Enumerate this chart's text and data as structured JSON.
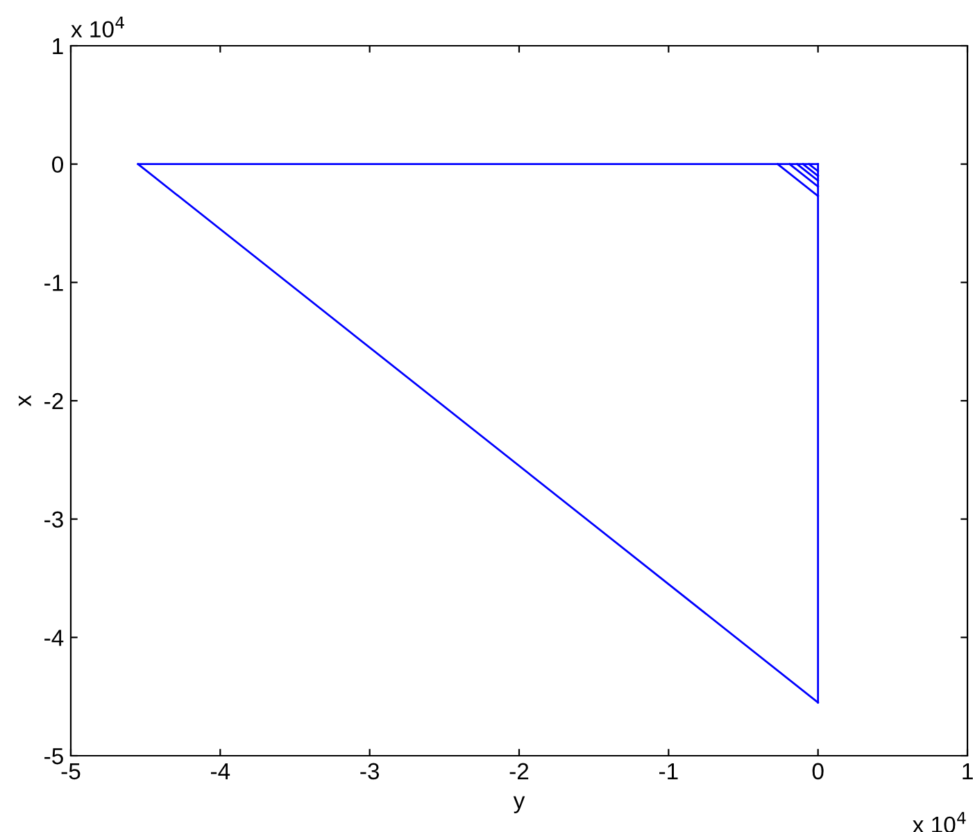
{
  "chart_data": {
    "type": "line",
    "xlabel": "y",
    "ylabel": "x",
    "series": [
      {
        "color": "#0000ff",
        "x": [
          -4.55,
          0
        ],
        "values": [
          0,
          0
        ]
      },
      {
        "color": "#0000ff",
        "x": [
          0,
          0
        ],
        "values": [
          0,
          -4.55
        ]
      },
      {
        "color": "#0000ff",
        "x": [
          -4.55,
          0
        ],
        "values": [
          0,
          -4.55
        ]
      },
      {
        "color": "#0000ff",
        "x": [
          -0.27,
          0
        ],
        "values": [
          0,
          -0.27
        ]
      },
      {
        "color": "#0000ff",
        "x": [
          -0.19,
          0
        ],
        "values": [
          0,
          -0.19
        ]
      },
      {
        "color": "#0000ff",
        "x": [
          -0.14,
          0
        ],
        "values": [
          0,
          -0.14
        ]
      },
      {
        "color": "#0000ff",
        "x": [
          -0.1,
          0
        ],
        "values": [
          0,
          -0.1
        ]
      },
      {
        "color": "#0000ff",
        "x": [
          -0.06,
          0
        ],
        "values": [
          0,
          -0.06
        ]
      }
    ],
    "xlim": [
      -5,
      1
    ],
    "ylim": [
      -5,
      1
    ],
    "xticks": [
      -5,
      -4,
      -3,
      -2,
      -1,
      0,
      1
    ],
    "yticks": [
      -5,
      -4,
      -3,
      -2,
      -1,
      0,
      1
    ],
    "annotations": [
      "x 10$^{4}$",
      "x 10$^{4}$"
    ],
    "grid": false,
    "legend": false,
    "line_style": "solid",
    "marker": "none"
  }
}
